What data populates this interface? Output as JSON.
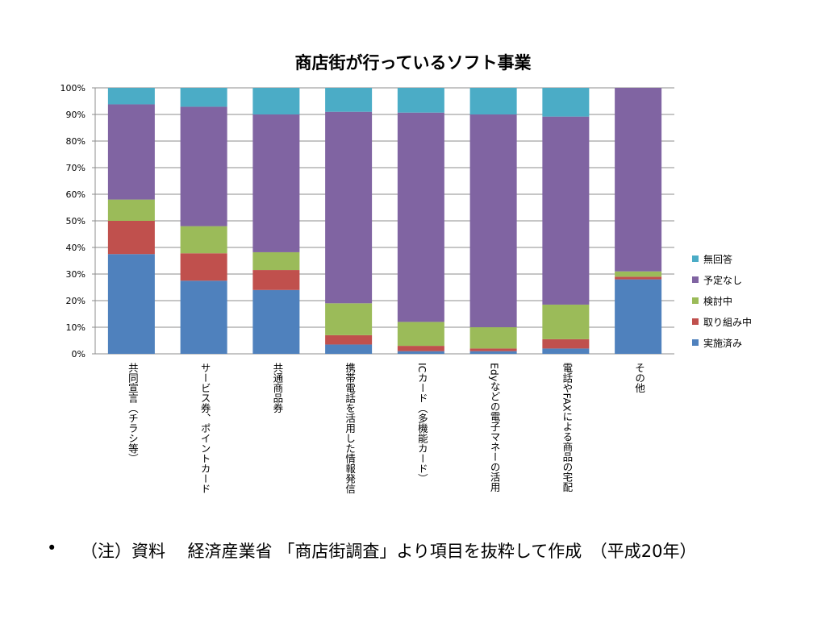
{
  "chart_data": {
    "type": "bar",
    "stacked": true,
    "title": "商店街が行っているソフト事業",
    "categories": [
      "共同宣言（チラシ等）",
      "サービス券、ポイントカード",
      "共通商品券",
      "携帯電話を活用した情報発信",
      "ICカード（多機能カード）",
      "Edyなどの電子マネーの活用",
      "電話やFAXによる商品の宅配",
      "その他"
    ],
    "series": [
      {
        "name": "実施済み",
        "color": "#4F81BD",
        "values": [
          37.5,
          27.5,
          24.0,
          3.5,
          1.0,
          1.0,
          2.0,
          28.0
        ]
      },
      {
        "name": "取り組み中",
        "color": "#C0504D",
        "values": [
          12.5,
          10.3,
          7.5,
          3.5,
          2.0,
          1.0,
          3.5,
          1.0
        ]
      },
      {
        "name": "検討中",
        "color": "#9BBB59",
        "values": [
          8.0,
          10.2,
          6.7,
          12.0,
          9.0,
          8.0,
          13.0,
          2.0
        ]
      },
      {
        "name": "予定なし",
        "color": "#8064A2",
        "values": [
          35.8,
          44.9,
          51.8,
          72.0,
          78.7,
          80.0,
          70.7,
          69.0
        ]
      },
      {
        "name": "無回答",
        "color": "#4BACC6",
        "values": [
          6.2,
          7.1,
          10.0,
          9.0,
          9.3,
          10.0,
          10.8,
          0.0
        ]
      }
    ],
    "y_ticks": [
      "0%",
      "10%",
      "20%",
      "30%",
      "40%",
      "50%",
      "60%",
      "70%",
      "80%",
      "90%",
      "100%"
    ],
    "ylim": [
      0,
      100
    ],
    "grid": true,
    "legend_position": "right",
    "legend_order": [
      "無回答",
      "予定なし",
      "検討中",
      "取り組み中",
      "実施済み"
    ]
  },
  "footnote": {
    "bullet": "•",
    "text": "（注）資料　 経済産業省 「商店街調査」より項目を抜粋して作成　（平成20年）"
  }
}
